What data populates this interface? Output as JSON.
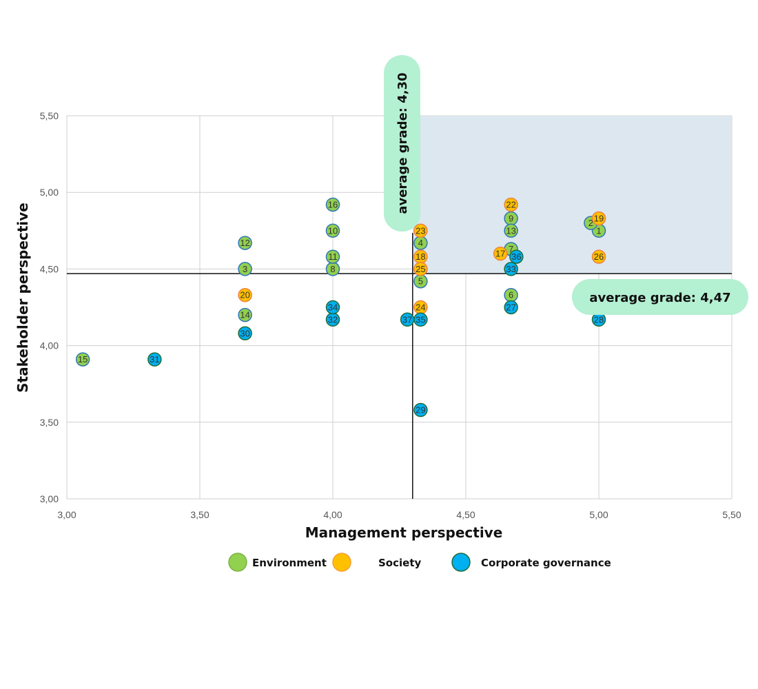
{
  "chart_data": {
    "type": "scatter",
    "xlabel": "Management perspective",
    "ylabel": "Stakeholder perspective",
    "xlim": [
      3.0,
      5.5
    ],
    "ylim": [
      3.0,
      5.5
    ],
    "xticks": [
      "3,00",
      "3,50",
      "4,00",
      "4,50",
      "5,00",
      "5,50"
    ],
    "yticks": [
      "3,00",
      "3,50",
      "4,00",
      "4,50",
      "5,00",
      "5,50"
    ],
    "grid": true,
    "legend_position": "bottom",
    "series": [
      {
        "name": "Environment",
        "color": "#92d050",
        "stroke": "#2e75b6",
        "points": [
          {
            "id": "1",
            "x": 5.0,
            "y": 4.75
          },
          {
            "id": "2",
            "x": 4.97,
            "y": 4.8
          },
          {
            "id": "3",
            "x": 3.67,
            "y": 4.5
          },
          {
            "id": "4",
            "x": 4.33,
            "y": 4.67
          },
          {
            "id": "5",
            "x": 4.33,
            "y": 4.42
          },
          {
            "id": "6",
            "x": 4.67,
            "y": 4.33
          },
          {
            "id": "7",
            "x": 4.67,
            "y": 4.63
          },
          {
            "id": "8",
            "x": 4.0,
            "y": 4.5
          },
          {
            "id": "9",
            "x": 4.67,
            "y": 4.83
          },
          {
            "id": "10",
            "x": 4.0,
            "y": 4.75
          },
          {
            "id": "11",
            "x": 4.0,
            "y": 4.58
          },
          {
            "id": "12",
            "x": 3.67,
            "y": 4.67
          },
          {
            "id": "13",
            "x": 4.67,
            "y": 4.75
          },
          {
            "id": "14",
            "x": 3.67,
            "y": 4.2
          },
          {
            "id": "15",
            "x": 3.06,
            "y": 3.91
          },
          {
            "id": "16",
            "x": 4.0,
            "y": 4.92
          }
        ]
      },
      {
        "name": "Society",
        "color": "#ffc000",
        "stroke": "#f0803c",
        "points": [
          {
            "id": "17",
            "x": 4.63,
            "y": 4.6
          },
          {
            "id": "18",
            "x": 4.33,
            "y": 4.58
          },
          {
            "id": "19",
            "x": 5.0,
            "y": 4.83
          },
          {
            "id": "20",
            "x": 3.67,
            "y": 4.33
          },
          {
            "id": "22",
            "x": 4.67,
            "y": 4.92
          },
          {
            "id": "23",
            "x": 4.33,
            "y": 4.75
          },
          {
            "id": "24",
            "x": 4.33,
            "y": 4.25
          },
          {
            "id": "25",
            "x": 4.33,
            "y": 4.5
          },
          {
            "id": "26",
            "x": 5.0,
            "y": 4.58
          }
        ]
      },
      {
        "name": "Corporate governance",
        "color": "#00b0f0",
        "stroke": "#1e6b3a",
        "points": [
          {
            "id": "27",
            "x": 4.67,
            "y": 4.25
          },
          {
            "id": "28",
            "x": 5.0,
            "y": 4.17
          },
          {
            "id": "29",
            "x": 4.33,
            "y": 3.58
          },
          {
            "id": "30",
            "x": 3.67,
            "y": 4.08
          },
          {
            "id": "31",
            "x": 3.33,
            "y": 3.91
          },
          {
            "id": "32",
            "x": 4.0,
            "y": 4.17
          },
          {
            "id": "33",
            "x": 4.67,
            "y": 4.5
          },
          {
            "id": "34",
            "x": 4.0,
            "y": 4.25
          },
          {
            "id": "35",
            "x": 4.33,
            "y": 4.17
          },
          {
            "id": "36",
            "x": 4.69,
            "y": 4.58
          },
          {
            "id": "37",
            "x": 4.28,
            "y": 4.17
          }
        ]
      }
    ],
    "reference_lines": {
      "vertical": {
        "x": 4.3,
        "label": "average grade: 4,30"
      },
      "horizontal": {
        "y": 4.47,
        "label": "average grade: 4,47"
      }
    },
    "highlight_region_color": "#dce7f0",
    "annotation_color": "#b4f0d2"
  }
}
